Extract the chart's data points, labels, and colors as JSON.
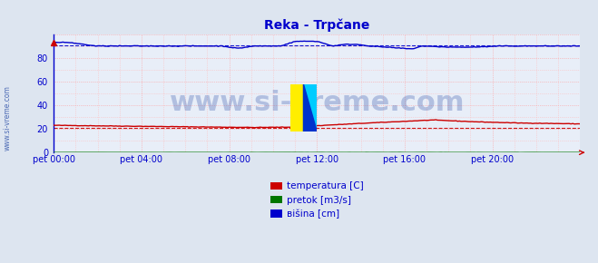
{
  "title": "Reka - Trpčane",
  "title_color": "#0000cc",
  "background_color": "#dde5f0",
  "plot_bg_color": "#e8eef8",
  "grid_color_major": "#ff9999",
  "grid_color_minor": "#ffbbbb",
  "xlim": [
    0,
    288
  ],
  "ylim": [
    0,
    100
  ],
  "yticks": [
    0,
    20,
    40,
    60,
    80
  ],
  "xtick_labels": [
    "pet 00:00",
    "pet 04:00",
    "pet 08:00",
    "pet 12:00",
    "pet 16:00",
    "pet 20:00"
  ],
  "xtick_positions": [
    0,
    48,
    96,
    144,
    192,
    240
  ],
  "temp_color": "#cc0000",
  "pretok_color": "#007700",
  "visina_color": "#0000cc",
  "temp_avg": 21.0,
  "visina_avg": 90.5,
  "watermark": "www.si-vreme.com",
  "watermark_color": "#3355aa",
  "watermark_fontsize": 22,
  "legend_items": [
    "temperatura [C]",
    "pretok [m3/s]",
    "вišina [cm]"
  ],
  "legend_colors": [
    "#cc0000",
    "#007700",
    "#0000cc"
  ],
  "ylabel_text": "www.si-vreme.com",
  "spine_color": "#0000cc",
  "tick_label_color": "#0000cc"
}
